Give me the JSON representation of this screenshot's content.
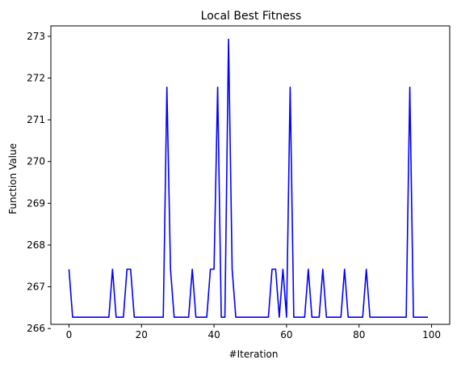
{
  "chart_data": {
    "type": "line",
    "title": "Local Best Fitness",
    "xlabel": "#Iteration",
    "ylabel": "Function Value",
    "xlim": [
      -5,
      105
    ],
    "ylim": [
      266.1,
      273.25
    ],
    "xticks": [
      0,
      20,
      40,
      60,
      80,
      100
    ],
    "yticks": [
      266,
      267,
      268,
      269,
      270,
      271,
      272,
      273
    ],
    "grid": false,
    "series": [
      {
        "color": "#0000ff",
        "x": [
          0,
          1,
          2,
          3,
          4,
          5,
          6,
          7,
          8,
          9,
          10,
          11,
          12,
          13,
          14,
          15,
          16,
          17,
          18,
          19,
          20,
          21,
          22,
          23,
          24,
          25,
          26,
          27,
          28,
          29,
          30,
          31,
          32,
          33,
          34,
          35,
          36,
          37,
          38,
          39,
          40,
          41,
          42,
          43,
          44,
          45,
          46,
          47,
          48,
          49,
          50,
          51,
          52,
          53,
          54,
          55,
          56,
          57,
          58,
          59,
          60,
          61,
          62,
          63,
          64,
          65,
          66,
          67,
          68,
          69,
          70,
          71,
          72,
          73,
          74,
          75,
          76,
          77,
          78,
          79,
          80,
          81,
          82,
          83,
          84,
          85,
          86,
          87,
          88,
          89,
          90,
          91,
          92,
          93,
          94,
          95,
          96,
          97,
          98,
          99
        ],
        "y": [
          267.42,
          266.27,
          266.27,
          266.27,
          266.27,
          266.27,
          266.27,
          266.27,
          266.27,
          266.27,
          266.27,
          266.27,
          267.42,
          266.27,
          266.27,
          266.27,
          267.42,
          267.42,
          266.27,
          266.27,
          266.27,
          266.27,
          266.27,
          266.27,
          266.27,
          266.27,
          266.27,
          271.78,
          267.42,
          266.27,
          266.27,
          266.27,
          266.27,
          266.27,
          267.42,
          266.27,
          266.27,
          266.27,
          266.27,
          267.42,
          267.42,
          271.78,
          266.27,
          266.27,
          272.93,
          267.42,
          266.27,
          266.27,
          266.27,
          266.27,
          266.27,
          266.27,
          266.27,
          266.27,
          266.27,
          266.27,
          267.42,
          267.42,
          266.27,
          267.42,
          266.27,
          271.78,
          266.27,
          266.27,
          266.27,
          266.27,
          267.42,
          266.27,
          266.27,
          266.27,
          267.42,
          266.27,
          266.27,
          266.27,
          266.27,
          266.27,
          267.42,
          266.27,
          266.27,
          266.27,
          266.27,
          266.27,
          267.42,
          266.27,
          266.27,
          266.27,
          266.27,
          266.27,
          266.27,
          266.27,
          266.27,
          266.27,
          266.27,
          266.27,
          271.78,
          266.27,
          266.27,
          266.27,
          266.27,
          266.27
        ]
      }
    ]
  }
}
